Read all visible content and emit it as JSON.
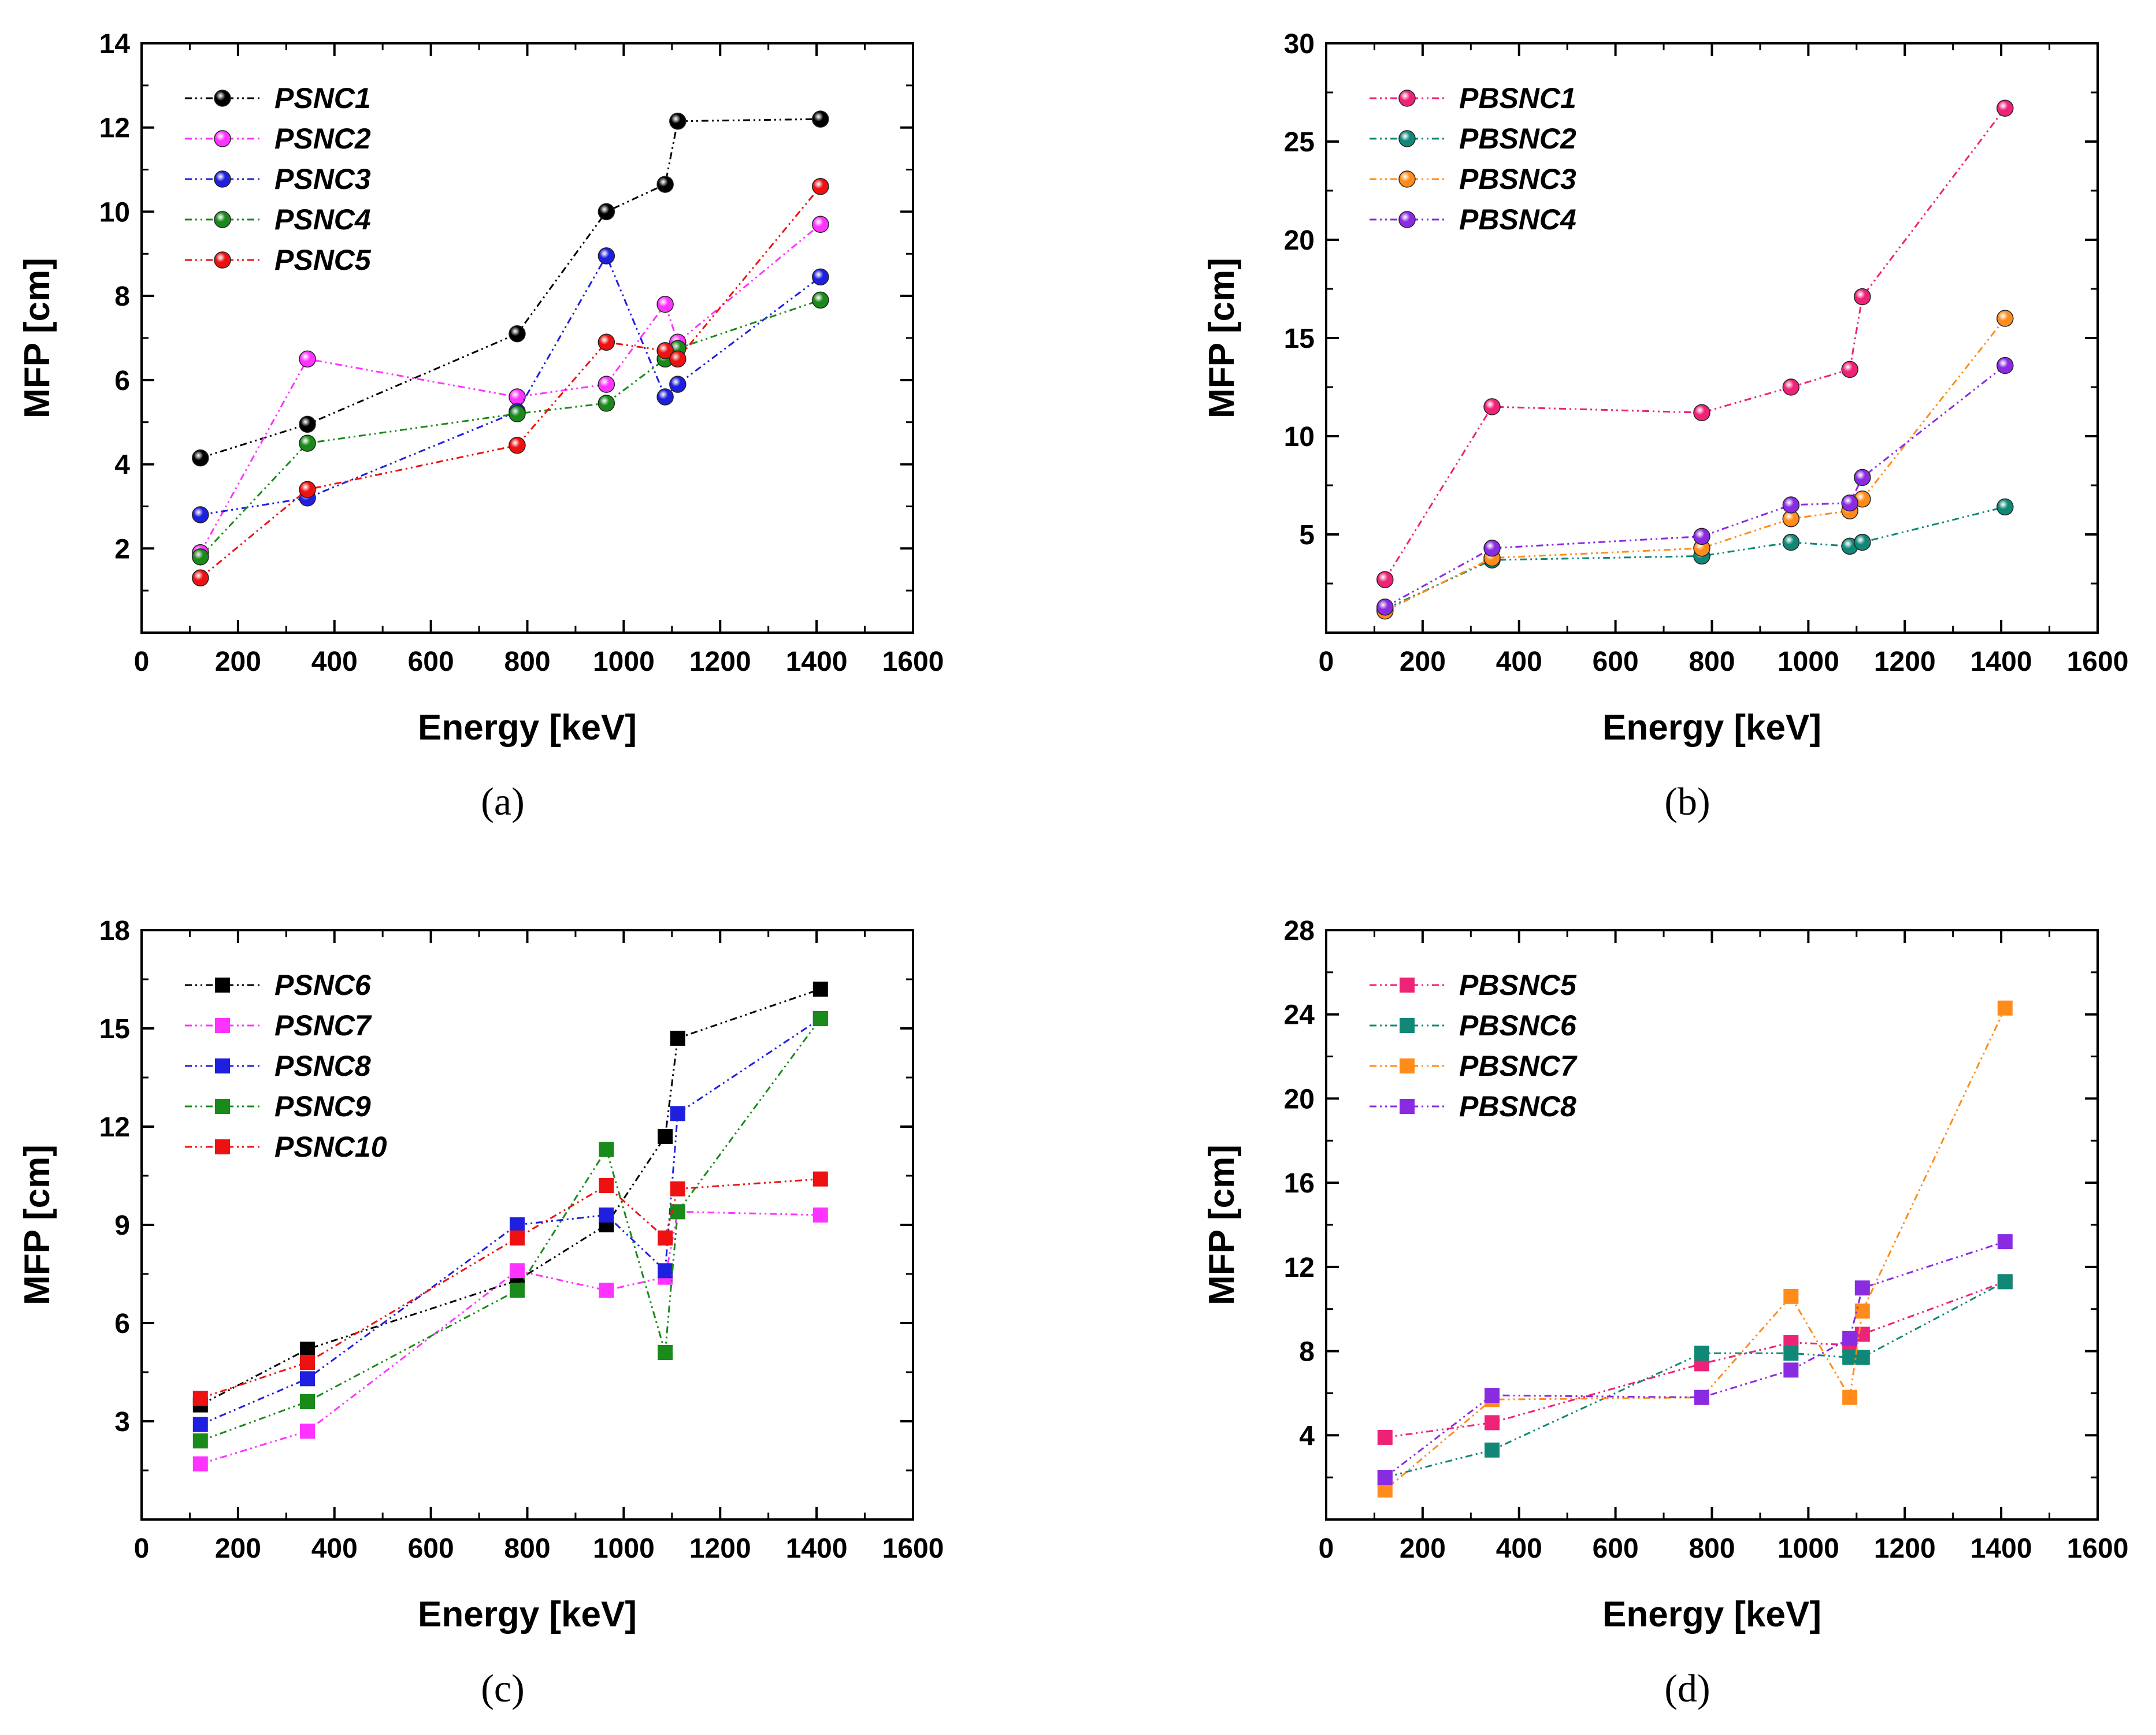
{
  "chart_data": [
    {
      "type": "line",
      "panel": "(a)",
      "xlabel": "Energy [keV]",
      "ylabel": "MFP [cm]",
      "xlim": [
        0,
        1600
      ],
      "ylim": [
        0,
        14
      ],
      "xticks": [
        0,
        200,
        400,
        600,
        800,
        1000,
        1200,
        1400,
        1600
      ],
      "yticks": [
        2,
        4,
        6,
        8,
        10,
        12,
        14
      ],
      "marker": "sphere",
      "legend_position": "top-left",
      "x": [
        122,
        344,
        779,
        964,
        1086,
        1112,
        1408
      ],
      "series": [
        {
          "name": "PSNC1",
          "color": "#000000",
          "values": [
            4.15,
            4.95,
            7.1,
            10.0,
            10.65,
            12.15,
            12.2
          ]
        },
        {
          "name": "PSNC2",
          "color": "#ff33ff",
          "values": [
            1.9,
            6.5,
            5.6,
            5.9,
            7.8,
            6.9,
            9.7
          ]
        },
        {
          "name": "PSNC3",
          "color": "#1f1fe0",
          "values": [
            2.8,
            3.2,
            5.25,
            8.95,
            5.6,
            5.9,
            8.45
          ]
        },
        {
          "name": "PSNC4",
          "color": "#1a8a1a",
          "values": [
            1.8,
            4.5,
            5.2,
            5.45,
            6.5,
            6.75,
            7.9
          ]
        },
        {
          "name": "PSNC5",
          "color": "#ee1111",
          "values": [
            1.3,
            3.4,
            4.45,
            6.9,
            6.7,
            6.5,
            10.6
          ]
        }
      ]
    },
    {
      "type": "line",
      "panel": "(b)",
      "xlabel": "Energy [keV]",
      "ylabel": "MFP [cm]",
      "xlim": [
        0,
        1600
      ],
      "ylim": [
        0,
        30
      ],
      "xticks": [
        0,
        200,
        400,
        600,
        800,
        1000,
        1200,
        1400,
        1600
      ],
      "yticks": [
        5,
        10,
        15,
        20,
        25,
        30
      ],
      "marker": "sphere",
      "legend_position": "top-left",
      "x": [
        122,
        344,
        779,
        964,
        1086,
        1112,
        1408
      ],
      "series": [
        {
          "name": "PBSNC1",
          "color": "#ee2277",
          "values": [
            2.7,
            11.5,
            11.2,
            12.5,
            13.4,
            17.1,
            26.7
          ]
        },
        {
          "name": "PBSNC2",
          "color": "#118877",
          "values": [
            1.2,
            3.7,
            3.9,
            4.6,
            4.4,
            4.6,
            6.4
          ]
        },
        {
          "name": "PBSNC3",
          "color": "#ff8c1a",
          "values": [
            1.1,
            3.8,
            4.3,
            5.8,
            6.2,
            6.8,
            16.0
          ]
        },
        {
          "name": "PBSNC4",
          "color": "#8a2be2",
          "values": [
            1.3,
            4.3,
            4.9,
            6.5,
            6.6,
            7.9,
            13.6
          ]
        }
      ]
    },
    {
      "type": "line",
      "panel": "(c)",
      "xlabel": "Energy [keV]",
      "ylabel": "MFP [cm]",
      "xlim": [
        0,
        1600
      ],
      "ylim": [
        0,
        18
      ],
      "xticks": [
        0,
        200,
        400,
        600,
        800,
        1000,
        1200,
        1400,
        1600
      ],
      "yticks": [
        3,
        6,
        9,
        12,
        15,
        18
      ],
      "marker": "square",
      "legend_position": "top-left",
      "x": [
        122,
        344,
        779,
        964,
        1086,
        1112,
        1408
      ],
      "series": [
        {
          "name": "PSNC6",
          "color": "#000000",
          "values": [
            3.5,
            5.2,
            7.3,
            9.0,
            11.7,
            14.7,
            16.2
          ]
        },
        {
          "name": "PSNC7",
          "color": "#ff33ff",
          "values": [
            1.7,
            2.7,
            7.6,
            7.0,
            7.4,
            9.4,
            9.3
          ]
        },
        {
          "name": "PSNC8",
          "color": "#1f1fe0",
          "values": [
            2.9,
            4.3,
            9.0,
            9.3,
            7.6,
            12.4,
            15.3
          ]
        },
        {
          "name": "PSNC9",
          "color": "#1a8a1a",
          "values": [
            2.4,
            3.6,
            7.0,
            11.3,
            5.1,
            9.4,
            15.3
          ]
        },
        {
          "name": "PSNC10",
          "color": "#ee1111",
          "values": [
            3.7,
            4.8,
            8.6,
            10.2,
            8.6,
            10.1,
            10.4
          ]
        }
      ]
    },
    {
      "type": "line",
      "panel": "(d)",
      "xlabel": "Energy [keV]",
      "ylabel": "MFP [cm]",
      "xlim": [
        0,
        1600
      ],
      "ylim": [
        0,
        28
      ],
      "xticks": [
        0,
        200,
        400,
        600,
        800,
        1000,
        1200,
        1400,
        1600
      ],
      "yticks": [
        4,
        8,
        12,
        16,
        20,
        24,
        28
      ],
      "marker": "square",
      "legend_position": "top-left",
      "x": [
        122,
        344,
        779,
        964,
        1086,
        1112,
        1408
      ],
      "series": [
        {
          "name": "PBSNC5",
          "color": "#ee2277",
          "values": [
            3.9,
            4.6,
            7.4,
            8.4,
            8.3,
            8.8,
            11.3
          ]
        },
        {
          "name": "PBSNC6",
          "color": "#118877",
          "values": [
            2.0,
            3.3,
            7.9,
            7.9,
            7.7,
            7.7,
            11.3
          ]
        },
        {
          "name": "PBSNC7",
          "color": "#ff8c1a",
          "values": [
            1.4,
            5.7,
            5.8,
            10.6,
            5.8,
            9.9,
            24.3
          ]
        },
        {
          "name": "PBSNC8",
          "color": "#8a2be2",
          "values": [
            2.0,
            5.9,
            5.8,
            7.1,
            8.6,
            11.0,
            13.2
          ]
        }
      ]
    }
  ]
}
